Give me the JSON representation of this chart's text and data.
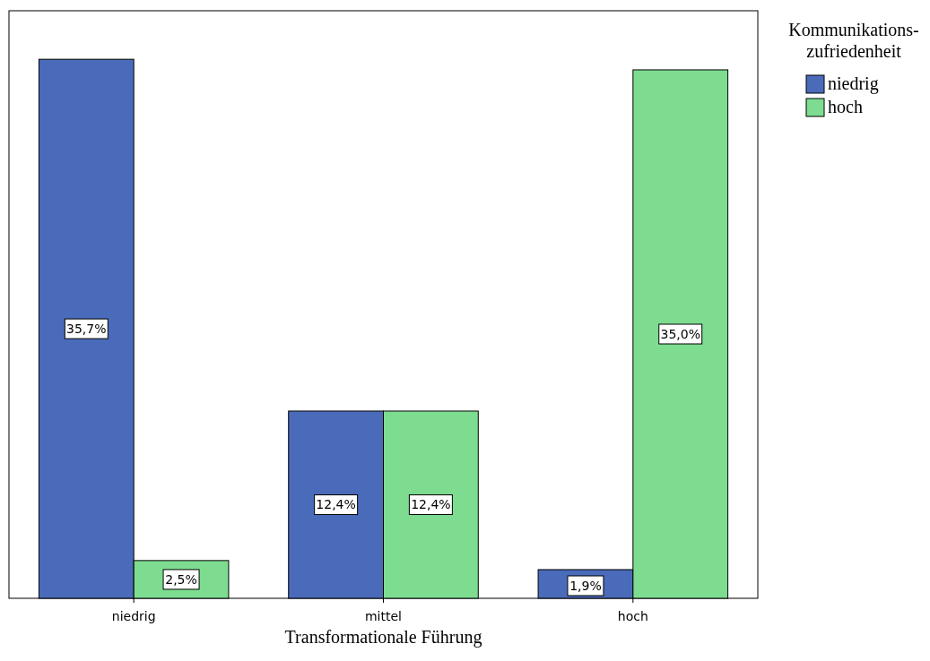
{
  "chart_data": {
    "type": "bar",
    "xlabel": "Transformationale Führung",
    "legend_title": "Kommunikations-\nzufriedenheit",
    "legend": "top right",
    "categories": [
      "niedrig",
      "mittel",
      "hoch"
    ],
    "series": [
      {
        "name": "niedrig",
        "color": "#4a6bba",
        "values": [
          35.7,
          12.4,
          1.9
        ],
        "value_labels": [
          "35,7%",
          "12,4%",
          "1,9%"
        ]
      },
      {
        "name": "hoch",
        "color": "#7ddc90",
        "values": [
          2.5,
          12.4,
          35.0
        ],
        "value_labels": [
          "2,5%",
          "12,4%",
          "35,0%"
        ]
      }
    ]
  }
}
